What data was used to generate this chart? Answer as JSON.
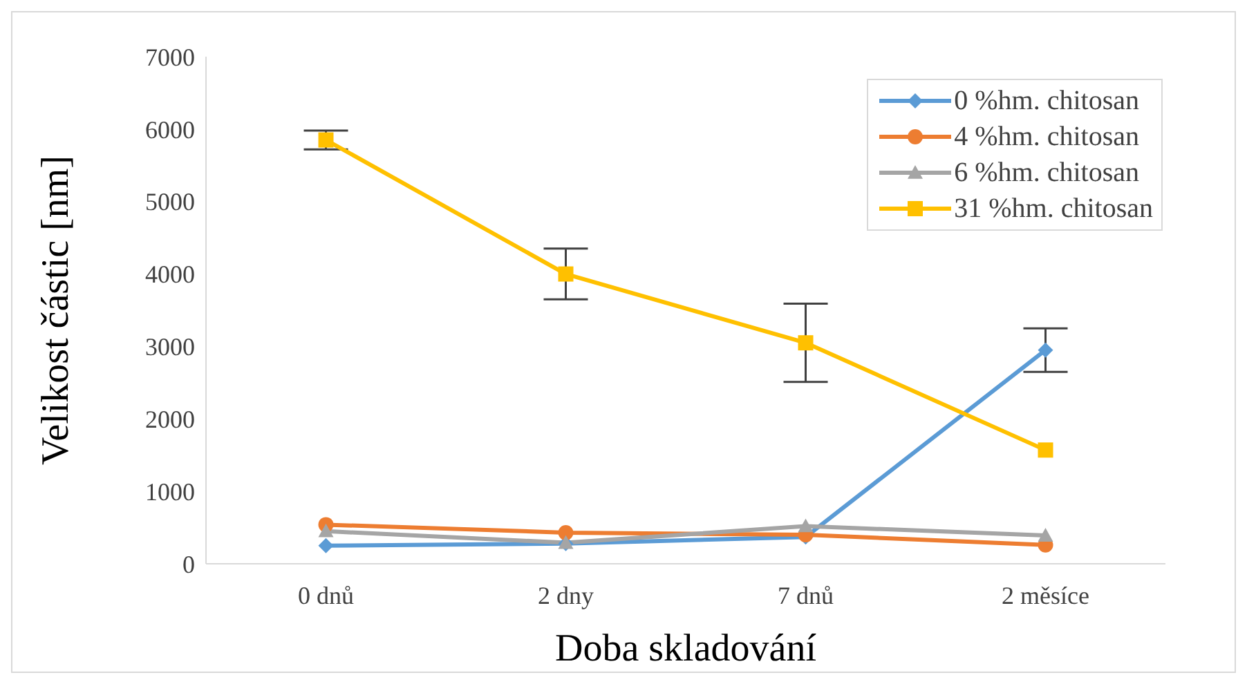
{
  "chart_data": {
    "type": "line",
    "xlabel": "Doba skladování",
    "ylabel": "Velikost částic [nm]",
    "categories": [
      "0 dnů",
      "2 dny",
      "7 dnů",
      "2 měsíce"
    ],
    "ylim": [
      0,
      7000
    ],
    "yticks": [
      0,
      1000,
      2000,
      3000,
      4000,
      5000,
      6000,
      7000
    ],
    "grid": false,
    "legend": "top right",
    "line_style": "solid",
    "series": [
      {
        "name": "0 %hm. chitosan",
        "color": "#5b9bd5",
        "marker": "diamond",
        "values": [
          250,
          280,
          370,
          2950
        ],
        "errors": [
          null,
          null,
          null,
          300
        ]
      },
      {
        "name": "4 %hm. chitosan",
        "color": "#ed7d31",
        "marker": "circle",
        "values": [
          540,
          430,
          400,
          260
        ]
      },
      {
        "name": "6 %hm. chitosan",
        "color": "#a5a5a5",
        "marker": "triangle",
        "values": [
          450,
          290,
          520,
          390
        ]
      },
      {
        "name": "31 %hm. chitosan",
        "color": "#ffc000",
        "marker": "square",
        "values": [
          5850,
          4000,
          3050,
          1570
        ],
        "errors": [
          130,
          350,
          540,
          null
        ]
      }
    ]
  }
}
